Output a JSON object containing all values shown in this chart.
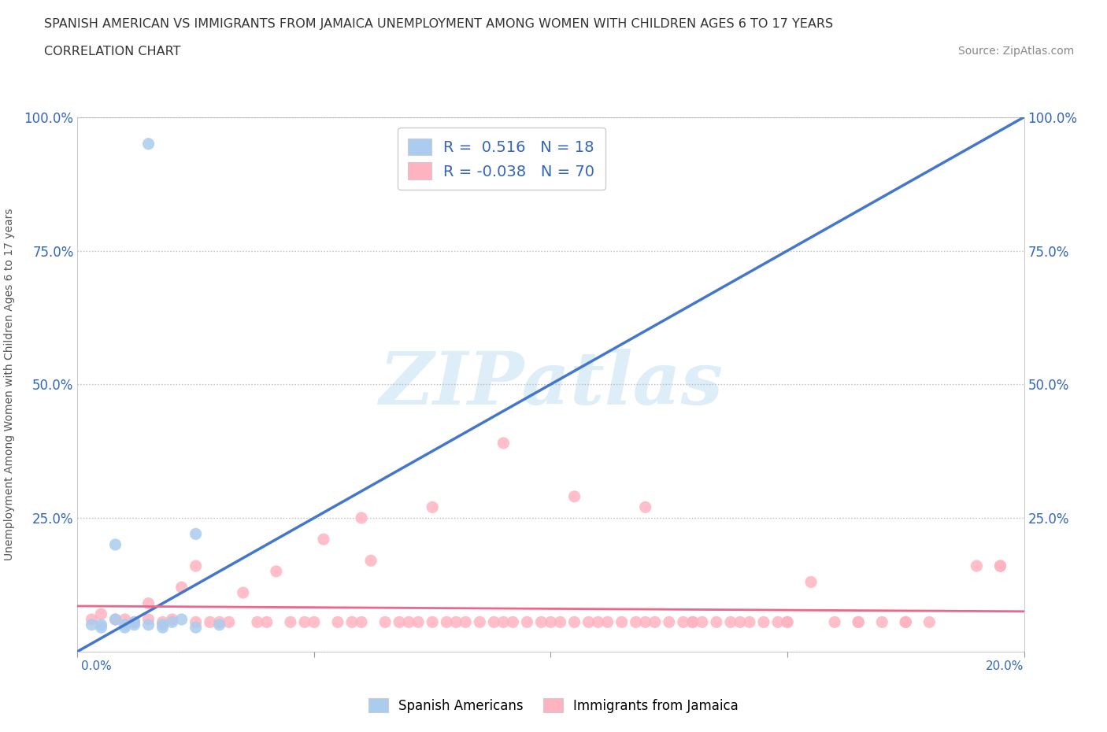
{
  "title_line1": "SPANISH AMERICAN VS IMMIGRANTS FROM JAMAICA UNEMPLOYMENT AMONG WOMEN WITH CHILDREN AGES 6 TO 17 YEARS",
  "title_line2": "CORRELATION CHART",
  "source_text": "Source: ZipAtlas.com",
  "ylabel": "Unemployment Among Women with Children Ages 6 to 17 years",
  "x_min": 0.0,
  "x_max": 0.2,
  "y_min": 0.0,
  "y_max": 1.0,
  "blue_R": 0.516,
  "blue_N": 18,
  "pink_R": -0.038,
  "pink_N": 70,
  "blue_color": "#AACCEE",
  "pink_color": "#FFB3C1",
  "blue_line_color": "#4477CC",
  "pink_line_color": "#EE6688",
  "diagonal_color": "#BBBBBB",
  "watermark_color": "#DDEEF8",
  "legend_R_color": "#3366BB",
  "blue_line_x0": 0.0,
  "blue_line_y0": 0.0,
  "blue_line_x1": 0.2,
  "blue_line_y1": 1.0,
  "pink_line_x0": 0.0,
  "pink_line_y0": 0.085,
  "pink_line_x1": 0.2,
  "pink_line_y1": 0.075,
  "blue_scatter_x": [
    0.015,
    0.005,
    0.01,
    0.008,
    0.012,
    0.018,
    0.022,
    0.025,
    0.03,
    0.005,
    0.01,
    0.015,
    0.02,
    0.003,
    0.008,
    0.012,
    0.018,
    0.025
  ],
  "blue_scatter_y": [
    0.95,
    0.05,
    0.045,
    0.2,
    0.055,
    0.05,
    0.06,
    0.22,
    0.05,
    0.045,
    0.05,
    0.05,
    0.055,
    0.05,
    0.06,
    0.05,
    0.045,
    0.045
  ],
  "pink_scatter_x": [
    0.003,
    0.005,
    0.008,
    0.01,
    0.012,
    0.015,
    0.015,
    0.018,
    0.02,
    0.022,
    0.025,
    0.025,
    0.028,
    0.03,
    0.032,
    0.035,
    0.038,
    0.04,
    0.042,
    0.045,
    0.048,
    0.05,
    0.052,
    0.055,
    0.058,
    0.06,
    0.062,
    0.065,
    0.068,
    0.07,
    0.072,
    0.075,
    0.078,
    0.08,
    0.082,
    0.085,
    0.088,
    0.09,
    0.092,
    0.095,
    0.098,
    0.1,
    0.102,
    0.105,
    0.108,
    0.11,
    0.112,
    0.115,
    0.118,
    0.12,
    0.122,
    0.125,
    0.128,
    0.13,
    0.132,
    0.135,
    0.138,
    0.14,
    0.142,
    0.145,
    0.148,
    0.15,
    0.155,
    0.16,
    0.165,
    0.17,
    0.175,
    0.18,
    0.19,
    0.195
  ],
  "pink_scatter_y": [
    0.06,
    0.07,
    0.06,
    0.06,
    0.055,
    0.06,
    0.09,
    0.055,
    0.06,
    0.12,
    0.055,
    0.16,
    0.055,
    0.055,
    0.055,
    0.11,
    0.055,
    0.055,
    0.15,
    0.055,
    0.055,
    0.055,
    0.21,
    0.055,
    0.055,
    0.055,
    0.17,
    0.055,
    0.055,
    0.055,
    0.055,
    0.055,
    0.055,
    0.055,
    0.055,
    0.055,
    0.055,
    0.055,
    0.055,
    0.055,
    0.055,
    0.055,
    0.055,
    0.055,
    0.055,
    0.055,
    0.055,
    0.055,
    0.055,
    0.055,
    0.055,
    0.055,
    0.055,
    0.055,
    0.055,
    0.055,
    0.055,
    0.055,
    0.055,
    0.055,
    0.055,
    0.055,
    0.13,
    0.055,
    0.055,
    0.055,
    0.055,
    0.055,
    0.16,
    0.16
  ],
  "pink_extra_x": [
    0.075,
    0.09,
    0.105,
    0.12,
    0.06,
    0.13,
    0.15,
    0.165,
    0.175,
    0.195
  ],
  "pink_extra_y": [
    0.27,
    0.39,
    0.29,
    0.27,
    0.25,
    0.055,
    0.055,
    0.055,
    0.055,
    0.16
  ]
}
